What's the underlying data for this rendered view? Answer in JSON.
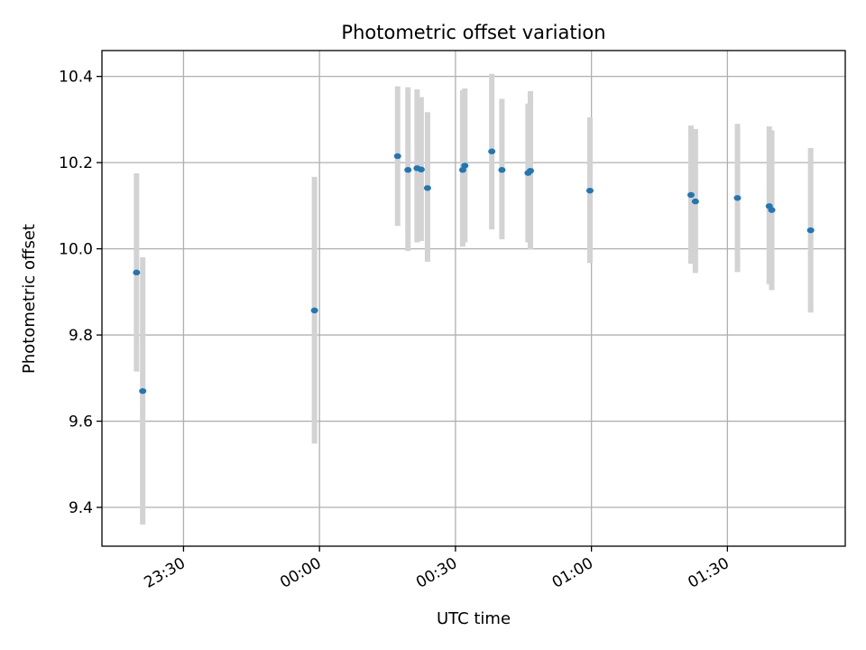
{
  "chart_data": {
    "type": "scatter",
    "title": "Photometric offset variation",
    "xlabel": "UTC time",
    "ylabel": "Photometric offset",
    "x_axis": {
      "kind": "time",
      "range": [
        "23:12",
        "01:56"
      ],
      "ticks": [
        "23:30",
        "00:00",
        "00:30",
        "01:00",
        "01:30"
      ]
    },
    "y_axis": {
      "range": [
        9.31,
        10.46
      ],
      "ticks": [
        "9.4",
        "9.6",
        "9.8",
        "10.0",
        "10.2",
        "10.4"
      ]
    },
    "grid": true,
    "colors": {
      "point": "#1f77b4",
      "errorbar": "#d3d3d3",
      "grid": "#b0b0b0"
    },
    "points": [
      {
        "x": "23:19:38",
        "y": 9.945,
        "ymin": 9.715,
        "ymax": 10.175
      },
      {
        "x": "23:21:00",
        "y": 9.67,
        "ymin": 9.36,
        "ymax": 9.98
      },
      {
        "x": "23:58:54",
        "y": 9.857,
        "ymin": 9.548,
        "ymax": 10.167
      },
      {
        "x": "00:17:14",
        "y": 10.215,
        "ymin": 10.053,
        "ymax": 10.377
      },
      {
        "x": "00:19:31",
        "y": 10.183,
        "ymin": 9.995,
        "ymax": 10.375
      },
      {
        "x": "00:21:32",
        "y": 10.187,
        "ymin": 10.015,
        "ymax": 10.37
      },
      {
        "x": "00:22:26",
        "y": 10.184,
        "ymin": 10.018,
        "ymax": 10.352
      },
      {
        "x": "00:23:50",
        "y": 10.141,
        "ymin": 9.97,
        "ymax": 10.317
      },
      {
        "x": "00:31:36",
        "y": 10.183,
        "ymin": 10.005,
        "ymax": 10.368
      },
      {
        "x": "00:32:04",
        "y": 10.193,
        "ymin": 10.015,
        "ymax": 10.372
      },
      {
        "x": "00:38:01",
        "y": 10.226,
        "ymin": 10.045,
        "ymax": 10.406
      },
      {
        "x": "00:40:15",
        "y": 10.183,
        "ymin": 10.022,
        "ymax": 10.348
      },
      {
        "x": "00:46:01",
        "y": 10.176,
        "ymin": 10.015,
        "ymax": 10.337
      },
      {
        "x": "00:46:32",
        "y": 10.181,
        "ymin": 9.998,
        "ymax": 10.366
      },
      {
        "x": "00:59:40",
        "y": 10.135,
        "ymin": 9.967,
        "ymax": 10.305
      },
      {
        "x": "01:21:58",
        "y": 10.125,
        "ymin": 9.965,
        "ymax": 10.286
      },
      {
        "x": "01:22:56",
        "y": 10.11,
        "ymin": 9.944,
        "ymax": 10.278
      },
      {
        "x": "01:32:13",
        "y": 10.118,
        "ymin": 9.946,
        "ymax": 10.29
      },
      {
        "x": "01:39:14",
        "y": 10.099,
        "ymin": 9.918,
        "ymax": 10.284
      },
      {
        "x": "01:39:47",
        "y": 10.09,
        "ymin": 9.904,
        "ymax": 10.275
      },
      {
        "x": "01:48:22",
        "y": 10.043,
        "ymin": 9.852,
        "ymax": 10.234
      }
    ]
  }
}
